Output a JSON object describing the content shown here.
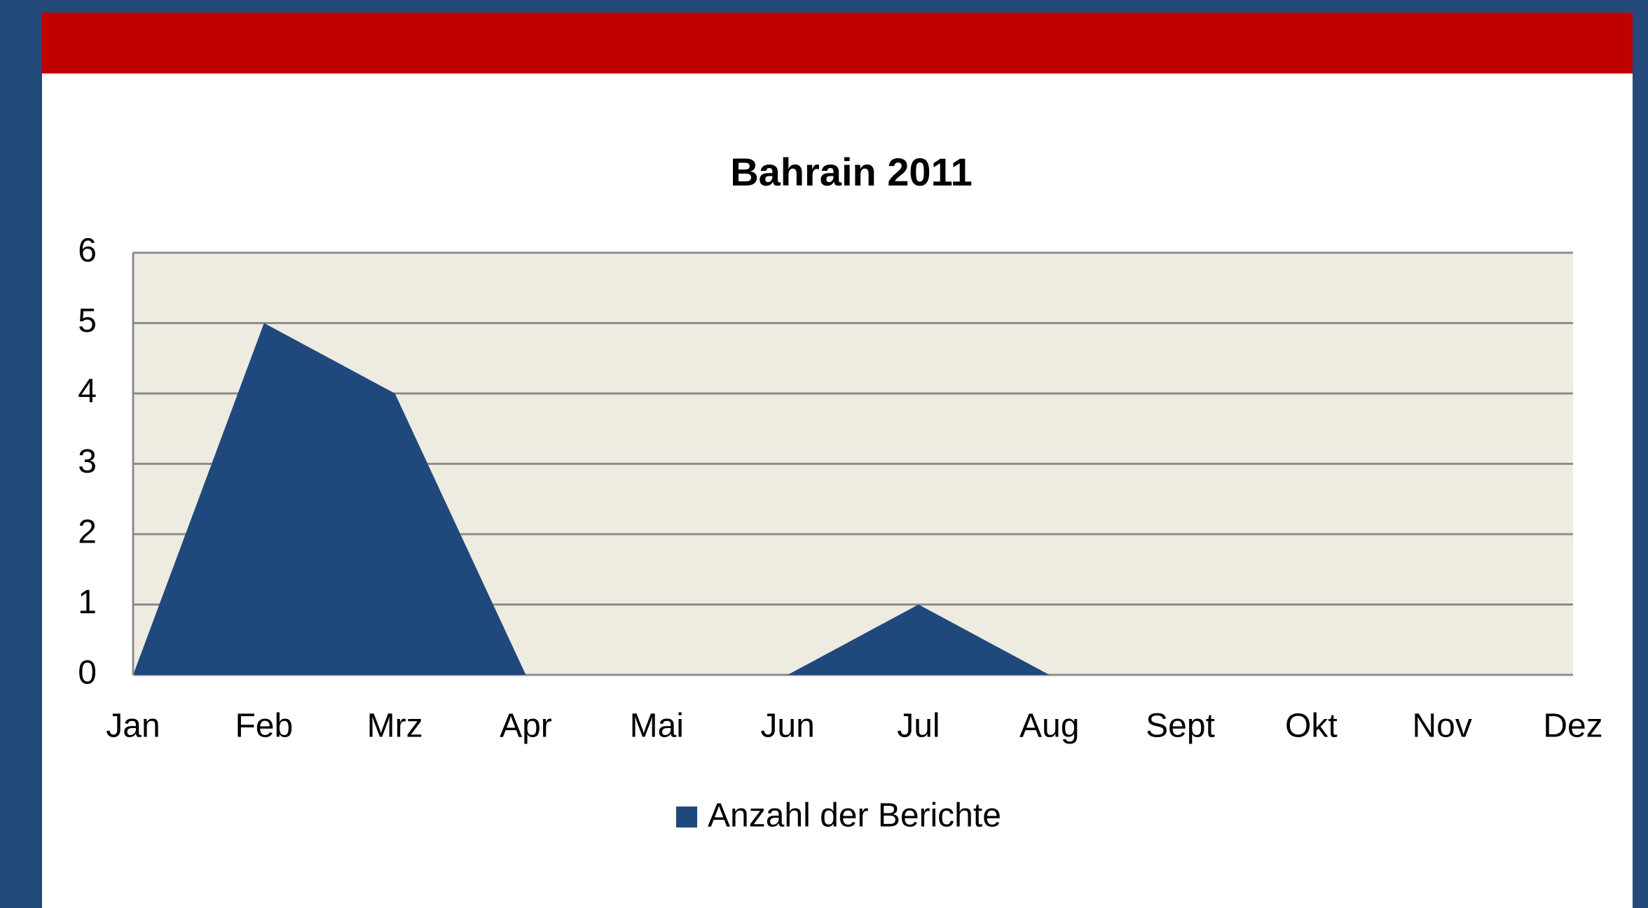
{
  "chart_data": {
    "type": "area",
    "title": "Bahrain 2011",
    "categories": [
      "Jan",
      "Feb",
      "Mrz",
      "Apr",
      "Mai",
      "Jun",
      "Jul",
      "Aug",
      "Sept",
      "Okt",
      "Nov",
      "Dez"
    ],
    "series": [
      {
        "name": "Anzahl der Berichte",
        "color": "#1f497d",
        "values": [
          0,
          5,
          4,
          0,
          0,
          0,
          1,
          0,
          0,
          0,
          0,
          0
        ]
      }
    ],
    "ylim": [
      0,
      6
    ],
    "yticks": [
      0,
      1,
      2,
      3,
      4,
      5,
      6
    ],
    "grid": true,
    "legend": "bottom"
  }
}
